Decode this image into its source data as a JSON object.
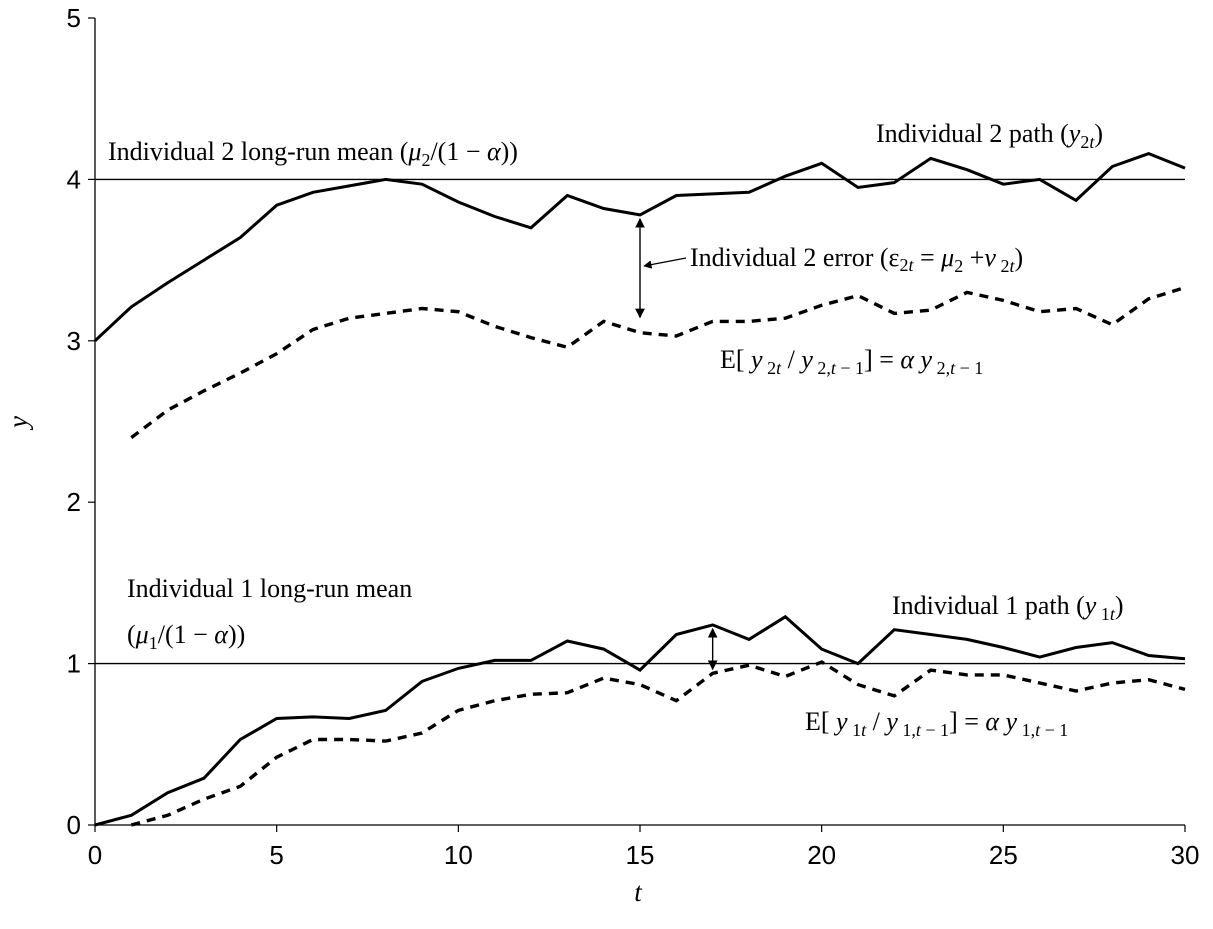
{
  "chart_data": {
    "type": "line",
    "xlabel": "t",
    "ylabel": "y",
    "xlim": [
      0,
      30
    ],
    "ylim": [
      0,
      5
    ],
    "xticks": [
      0,
      5,
      10,
      15,
      20,
      25,
      30
    ],
    "yticks": [
      0,
      1,
      2,
      3,
      4,
      5
    ],
    "grid": false,
    "series": [
      {
        "style": "solid",
        "x": [
          0,
          1,
          2,
          3,
          4,
          5,
          6,
          7,
          8,
          9,
          10,
          11,
          12,
          13,
          14,
          15,
          16,
          17,
          18,
          19,
          20,
          21,
          22,
          23,
          24,
          25,
          26,
          27,
          28,
          29,
          30
        ],
        "values": [
          3.0,
          3.21,
          3.36,
          3.5,
          3.64,
          3.84,
          3.92,
          3.96,
          4.0,
          3.97,
          3.86,
          3.77,
          3.7,
          3.9,
          3.82,
          3.78,
          3.9,
          3.91,
          3.92,
          4.02,
          4.1,
          3.95,
          3.98,
          4.13,
          4.06,
          3.97,
          4.0,
          3.87,
          4.08,
          4.16,
          4.07
        ]
      },
      {
        "style": "dashed",
        "x": [
          1,
          2,
          3,
          4,
          5,
          6,
          7,
          8,
          9,
          10,
          11,
          12,
          13,
          14,
          15,
          16,
          17,
          18,
          19,
          20,
          21,
          22,
          23,
          24,
          25,
          26,
          27,
          28,
          29,
          30
        ],
        "values": [
          2.4,
          2.57,
          2.69,
          2.8,
          2.92,
          3.07,
          3.14,
          3.17,
          3.2,
          3.18,
          3.09,
          3.02,
          2.96,
          3.12,
          3.05,
          3.03,
          3.12,
          3.12,
          3.14,
          3.22,
          3.28,
          3.17,
          3.19,
          3.3,
          3.25,
          3.18,
          3.2,
          3.1,
          3.26,
          3.33
        ]
      },
      {
        "style": "solid",
        "x": [
          0,
          1,
          2,
          3,
          4,
          5,
          6,
          7,
          8,
          9,
          10,
          11,
          12,
          13,
          14,
          15,
          16,
          17,
          18,
          19,
          20,
          21,
          22,
          23,
          24,
          25,
          26,
          27,
          28,
          29,
          30
        ],
        "values": [
          0.0,
          0.06,
          0.2,
          0.29,
          0.53,
          0.66,
          0.67,
          0.66,
          0.71,
          0.89,
          0.97,
          1.02,
          1.02,
          1.14,
          1.09,
          0.96,
          1.18,
          1.24,
          1.15,
          1.29,
          1.09,
          1.0,
          1.21,
          1.18,
          1.15,
          1.1,
          1.04,
          1.1,
          1.13,
          1.05,
          1.03
        ]
      },
      {
        "style": "dashed",
        "x": [
          1,
          2,
          3,
          4,
          5,
          6,
          7,
          8,
          9,
          10,
          11,
          12,
          13,
          14,
          15,
          16,
          17,
          18,
          19,
          20,
          21,
          22,
          23,
          24,
          25,
          26,
          27,
          28,
          29,
          30
        ],
        "values": [
          0.0,
          0.06,
          0.16,
          0.24,
          0.42,
          0.53,
          0.53,
          0.52,
          0.57,
          0.71,
          0.77,
          0.81,
          0.82,
          0.91,
          0.87,
          0.77,
          0.94,
          0.99,
          0.92,
          1.01,
          0.87,
          0.8,
          0.96,
          0.93,
          0.93,
          0.88,
          0.83,
          0.88,
          0.9,
          0.84
        ]
      }
    ],
    "reference_lines": [
      {
        "y": 4
      },
      {
        "y": 1
      }
    ],
    "error_markers": [
      {
        "x": 15,
        "from": 3.78,
        "to": 3.12
      },
      {
        "x": 17,
        "from": 1.24,
        "to": 0.94
      }
    ],
    "annotations": {
      "mean2": {
        "text": "Individual 2 long-run mean (",
        "mu": "μ",
        "mu_sub": "2",
        "rest": "/(1 − ",
        "alpha": "α",
        "close": "))"
      },
      "path2": {
        "text": "Individual 2 path (",
        "y": "y",
        "sub": "2",
        "sub_t": "t",
        "close": ")"
      },
      "error2": {
        "text": "Individual 2 error (",
        "eps": "ε",
        "eps_sub": "2",
        "eps_sub_t": "t",
        "eq": " = ",
        "mu": "μ",
        "mu_sub": "2",
        "plus": " +",
        "v": "v",
        "v_sub": " 2",
        "v_sub_t": "t",
        "close": ")"
      },
      "exp2": {
        "lhs": "E[ ",
        "y": "y",
        "sub_a": " 2",
        "sub_a_t": "t",
        "slash": " / ",
        "y2": "y",
        "sub_b": " 2,",
        "sub_b_t": "t",
        "sub_b_rest": " − 1",
        "mid": "] = ",
        "alpha": "α",
        "y3": " y",
        "sub_c": " 2,",
        "sub_c_t": "t",
        "sub_c_rest": " − 1"
      },
      "mean1_line1": "Individual 1 long-run mean",
      "mean1_line2": {
        "open": "(",
        "mu": "μ",
        "mu_sub": "1",
        "rest": "/(1 − ",
        "alpha": "α",
        "close": "))"
      },
      "path1": {
        "text": "Individual 1 path (",
        "y": "y",
        "sub": " 1",
        "sub_t": "t",
        "close": ")"
      },
      "exp1": {
        "lhs": "E[ ",
        "y": "y",
        "sub_a": " 1",
        "sub_a_t": "t",
        "slash": " / ",
        "y2": "y",
        "sub_b": " 1,",
        "sub_b_t": "t",
        "sub_b_rest": " − 1",
        "mid": "] = ",
        "alpha": "α",
        "y3": " y",
        "sub_c": " 1,",
        "sub_c_t": "t",
        "sub_c_rest": " − 1"
      }
    }
  }
}
